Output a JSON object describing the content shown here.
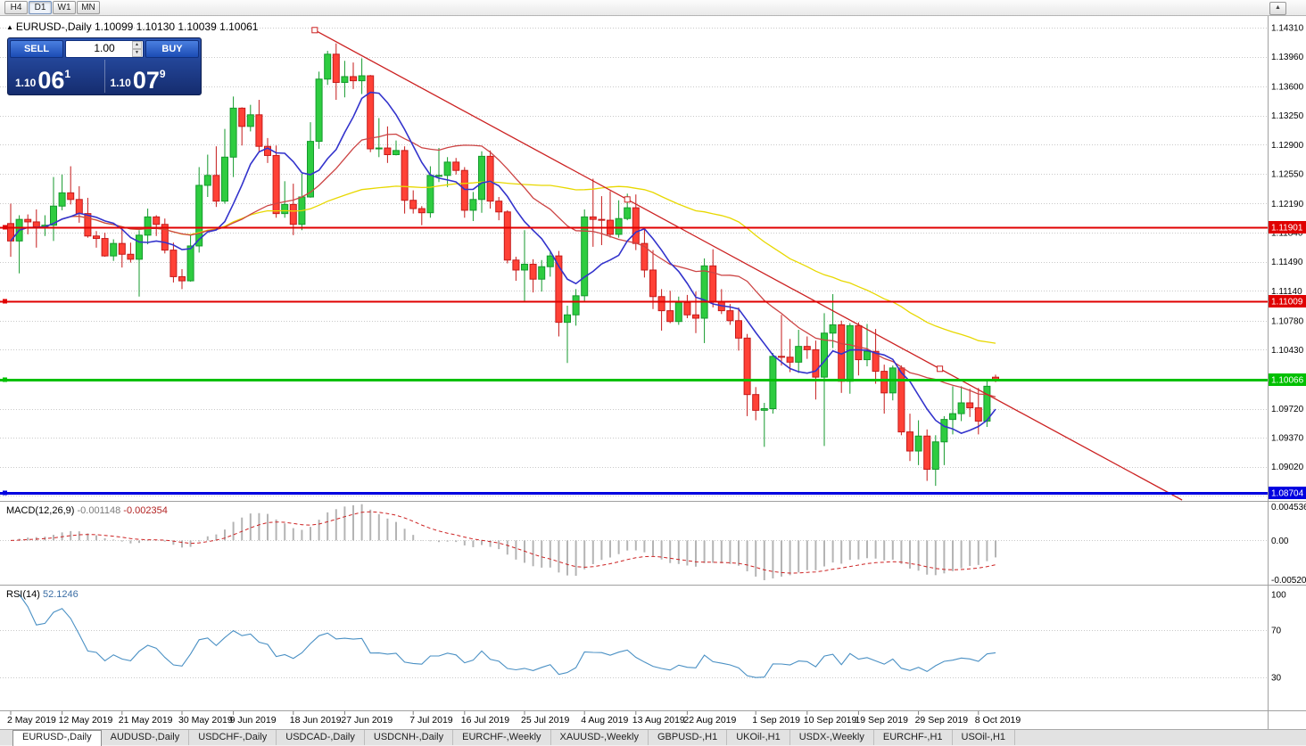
{
  "topbar": {
    "timeframes": [
      "H4",
      "D1",
      "W1",
      "MN"
    ],
    "active_timeframe": "D1"
  },
  "icons": {
    "scroll_up": "▲",
    "title_marker": "▲",
    "spin_up": "▲",
    "spin_down": "▼"
  },
  "chart": {
    "title": "EURUSD-,Daily",
    "ohlc": "1.10099 1.10130 1.10039 1.10061"
  },
  "trade_panel": {
    "sell_label": "SELL",
    "buy_label": "BUY",
    "volume": "1.00",
    "sell_price": {
      "base": "1.10",
      "big": "06",
      "sup": "1"
    },
    "buy_price": {
      "base": "1.10",
      "big": "07",
      "sup": "9"
    }
  },
  "indicators": {
    "macd": {
      "name": "MACD(12,26,9)",
      "value1": "-0.001148",
      "value2": "-0.002354",
      "axis": {
        "top": "0.004536",
        "zero": "0.00",
        "bottom": "-0.005205"
      },
      "params": {
        "fast": 12,
        "slow": 26,
        "signal": 9
      }
    },
    "rsi": {
      "name": "RSI(14)",
      "value": "52.1246",
      "axis": [
        "100",
        "70",
        "30"
      ],
      "params": {
        "period": 14,
        "levels": [
          70,
          30
        ]
      }
    }
  },
  "tabs": [
    {
      "label": "EURUSD-,Daily",
      "active": true
    },
    {
      "label": "AUDUSD-,Daily",
      "active": false
    },
    {
      "label": "USDCHF-,Daily",
      "active": false
    },
    {
      "label": "USDCAD-,Daily",
      "active": false
    },
    {
      "label": "USDCNH-,Daily",
      "active": false
    },
    {
      "label": "EURCHF-,Weekly",
      "active": false
    },
    {
      "label": "XAUUSD-,Weekly",
      "active": false
    },
    {
      "label": "GBPUSD-,H1",
      "active": false
    },
    {
      "label": "UKOil-,H1",
      "active": false
    },
    {
      "label": "USDX-,Weekly",
      "active": false
    },
    {
      "label": "EURCHF-,H1",
      "active": false
    },
    {
      "label": "USOil-,H1",
      "active": false
    }
  ],
  "colors": {
    "candle_up": "#2ecc40",
    "candle_up_border": "#149a2c",
    "candle_down": "#ff4136",
    "candle_down_border": "#c51a1a",
    "grid": "#c9c9c9",
    "macd_histogram": "#b4b4b4",
    "macd_signal": "#cc2222",
    "rsi_line": "#4a90c4",
    "background": "#ffffff",
    "axis_text": "#000000"
  },
  "chart_data": {
    "type": "candlestick",
    "symbol": "EURUSD-",
    "timeframe": "Daily",
    "current_ohlc": {
      "open": 1.10099,
      "high": 1.1013,
      "low": 1.10039,
      "close": 1.10061
    },
    "price_axis_labels": [
      "1.14310",
      "1.13960",
      "1.13600",
      "1.13250",
      "1.12900",
      "1.12550",
      "1.12190",
      "1.11840",
      "1.11490",
      "1.11140",
      "1.10780",
      "1.10430",
      "1.10080",
      "1.09720",
      "1.09370",
      "1.09020",
      "1.08670"
    ],
    "date_labels": [
      {
        "label": "2 May 2019",
        "index": 0
      },
      {
        "label": "12 May 2019",
        "index": 6
      },
      {
        "label": "21 May 2019",
        "index": 13
      },
      {
        "label": "30 May 2019",
        "index": 20
      },
      {
        "label": "9 Jun 2019",
        "index": 26
      },
      {
        "label": "18 Jun 2019",
        "index": 33
      },
      {
        "label": "27 Jun 2019",
        "index": 39
      },
      {
        "label": "7 Jul 2019",
        "index": 47
      },
      {
        "label": "16 Jul 2019",
        "index": 53
      },
      {
        "label": "25 Jul 2019",
        "index": 60
      },
      {
        "label": "4 Aug 2019",
        "index": 67
      },
      {
        "label": "13 Aug 2019",
        "index": 73
      },
      {
        "label": "22 Aug 2019",
        "index": 79
      },
      {
        "label": "1 Sep 2019",
        "index": 87
      },
      {
        "label": "10 Sep 2019",
        "index": 93
      },
      {
        "label": "19 Sep 2019",
        "index": 99
      },
      {
        "label": "29 Sep 2019",
        "index": 106
      },
      {
        "label": "8 Oct 2019",
        "index": 113
      }
    ],
    "horizontal_levels": [
      {
        "label": "1.11901",
        "price": 1.11901,
        "color": "#e00000",
        "width": 2
      },
      {
        "label": "1.11009",
        "price": 1.11009,
        "color": "#e00000",
        "width": 2
      },
      {
        "label": "1.10066",
        "price": 1.10066,
        "color": "#00c000",
        "width": 3
      },
      {
        "label": "1.08704",
        "price": 1.08704,
        "color": "#0000e0",
        "width": 3
      }
    ],
    "trendline": {
      "color": "#cc2222",
      "anchors": [
        {
          "index": 35.5,
          "price": 1.1428
        },
        {
          "index": 72,
          "price": 1.1224
        },
        {
          "index": 108.5,
          "price": 1.102
        }
      ]
    },
    "moving_averages": [
      {
        "period": 50,
        "color": "#e8d800",
        "width": 1.3,
        "name": "slow"
      },
      {
        "period": 20,
        "color": "#cc4444",
        "width": 1.3,
        "name": "medium"
      },
      {
        "period": 8,
        "color": "#3333cc",
        "width": 1.6,
        "name": "fast"
      }
    ],
    "candles": [
      [
        1.1195,
        1.1219,
        1.1155,
        1.1174
      ],
      [
        1.1174,
        1.1205,
        1.1135,
        1.12
      ],
      [
        1.12,
        1.1206,
        1.1182,
        1.1197
      ],
      [
        1.1197,
        1.1212,
        1.1166,
        1.1191
      ],
      [
        1.1191,
        1.1205,
        1.118,
        1.1193
      ],
      [
        1.1193,
        1.1251,
        1.1174,
        1.1216
      ],
      [
        1.1216,
        1.1254,
        1.1211,
        1.1232
      ],
      [
        1.1232,
        1.1264,
        1.1218,
        1.1224
      ],
      [
        1.1224,
        1.124,
        1.1196,
        1.1207
      ],
      [
        1.1207,
        1.1226,
        1.1178,
        1.118
      ],
      [
        1.118,
        1.1186,
        1.1166,
        1.1177
      ],
      [
        1.1177,
        1.1184,
        1.1155,
        1.1156
      ],
      [
        1.1156,
        1.1176,
        1.115,
        1.1171
      ],
      [
        1.1171,
        1.1188,
        1.1142,
        1.1158
      ],
      [
        1.1158,
        1.1172,
        1.1148,
        1.1152
      ],
      [
        1.1152,
        1.1187,
        1.1107,
        1.1181
      ],
      [
        1.1181,
        1.1213,
        1.117,
        1.1203
      ],
      [
        1.1203,
        1.1205,
        1.118,
        1.1194
      ],
      [
        1.1194,
        1.1201,
        1.1159,
        1.1163
      ],
      [
        1.1163,
        1.1172,
        1.1124,
        1.1131
      ],
      [
        1.1131,
        1.114,
        1.1116,
        1.1126
      ],
      [
        1.1126,
        1.1182,
        1.1125,
        1.1168
      ],
      [
        1.1168,
        1.1263,
        1.116,
        1.1241
      ],
      [
        1.1241,
        1.1278,
        1.1227,
        1.1253
      ],
      [
        1.1253,
        1.1288,
        1.1215,
        1.1222
      ],
      [
        1.1222,
        1.1309,
        1.1219,
        1.1275
      ],
      [
        1.1275,
        1.1348,
        1.1251,
        1.1334
      ],
      [
        1.1334,
        1.1335,
        1.1289,
        1.1312
      ],
      [
        1.1312,
        1.1338,
        1.1306,
        1.1326
      ],
      [
        1.1326,
        1.1344,
        1.1282,
        1.1288
      ],
      [
        1.1288,
        1.1298,
        1.1268,
        1.1277
      ],
      [
        1.1277,
        1.1289,
        1.1202,
        1.1207
      ],
      [
        1.1207,
        1.1246,
        1.1202,
        1.1218
      ],
      [
        1.1218,
        1.1243,
        1.1181,
        1.1194
      ],
      [
        1.1194,
        1.1255,
        1.1187,
        1.1227
      ],
      [
        1.1227,
        1.1317,
        1.1226,
        1.1294
      ],
      [
        1.1294,
        1.1378,
        1.1285,
        1.1369
      ],
      [
        1.1369,
        1.1403,
        1.1362,
        1.1399
      ],
      [
        1.1399,
        1.1412,
        1.1344,
        1.1365
      ],
      [
        1.1365,
        1.1391,
        1.1347,
        1.1372
      ],
      [
        1.1372,
        1.1389,
        1.1357,
        1.1367
      ],
      [
        1.1367,
        1.1394,
        1.1351,
        1.1373
      ],
      [
        1.1373,
        1.1374,
        1.1281,
        1.1285
      ],
      [
        1.1285,
        1.1322,
        1.1275,
        1.1286
      ],
      [
        1.1286,
        1.1312,
        1.1268,
        1.1278
      ],
      [
        1.1278,
        1.1295,
        1.1277,
        1.1283
      ],
      [
        1.1283,
        1.1288,
        1.1207,
        1.1223
      ],
      [
        1.1223,
        1.1235,
        1.1207,
        1.1213
      ],
      [
        1.1213,
        1.1216,
        1.1193,
        1.1208
      ],
      [
        1.1208,
        1.1264,
        1.1202,
        1.1253
      ],
      [
        1.1253,
        1.1286,
        1.1245,
        1.1253
      ],
      [
        1.1253,
        1.1275,
        1.1239,
        1.1269
      ],
      [
        1.1269,
        1.1274,
        1.1254,
        1.1259
      ],
      [
        1.1259,
        1.1263,
        1.1202,
        1.1211
      ],
      [
        1.1211,
        1.1233,
        1.1198,
        1.1224
      ],
      [
        1.1224,
        1.1282,
        1.1208,
        1.1276
      ],
      [
        1.1276,
        1.1283,
        1.1213,
        1.1222
      ],
      [
        1.1222,
        1.1227,
        1.1199,
        1.1209
      ],
      [
        1.1209,
        1.1211,
        1.1147,
        1.1151
      ],
      [
        1.1151,
        1.1155,
        1.1126,
        1.1139
      ],
      [
        1.1139,
        1.1187,
        1.1101,
        1.1146
      ],
      [
        1.1146,
        1.1152,
        1.1112,
        1.1128
      ],
      [
        1.1128,
        1.1151,
        1.1113,
        1.1143
      ],
      [
        1.1143,
        1.1162,
        1.1131,
        1.1156
      ],
      [
        1.1156,
        1.1162,
        1.1059,
        1.1076
      ],
      [
        1.1076,
        1.1096,
        1.1027,
        1.1085
      ],
      [
        1.1085,
        1.1116,
        1.1072,
        1.1108
      ],
      [
        1.1108,
        1.1212,
        1.1101,
        1.1203
      ],
      [
        1.1203,
        1.1249,
        1.1167,
        1.12
      ],
      [
        1.12,
        1.1228,
        1.1169,
        1.1199
      ],
      [
        1.1199,
        1.1234,
        1.1178,
        1.1182
      ],
      [
        1.1182,
        1.1223,
        1.1178,
        1.1201
      ],
      [
        1.1201,
        1.1231,
        1.1199,
        1.1214
      ],
      [
        1.1214,
        1.123,
        1.1163,
        1.1171
      ],
      [
        1.1171,
        1.1191,
        1.113,
        1.1139
      ],
      [
        1.1139,
        1.1163,
        1.1092,
        1.1107
      ],
      [
        1.1107,
        1.1116,
        1.1066,
        1.109
      ],
      [
        1.109,
        1.1114,
        1.1075,
        1.1077
      ],
      [
        1.1077,
        1.1107,
        1.1073,
        1.11
      ],
      [
        1.11,
        1.1109,
        1.1081,
        1.1085
      ],
      [
        1.1085,
        1.1113,
        1.1063,
        1.1081
      ],
      [
        1.1081,
        1.1153,
        1.1051,
        1.1144
      ],
      [
        1.1144,
        1.1164,
        1.1094,
        1.1101
      ],
      [
        1.1101,
        1.1116,
        1.1086,
        1.109
      ],
      [
        1.109,
        1.1098,
        1.1073,
        1.1078
      ],
      [
        1.1078,
        1.1094,
        1.1042,
        1.1057
      ],
      [
        1.1057,
        1.1062,
        1.0963,
        1.0989
      ],
      [
        1.0989,
        1.0998,
        1.0958,
        1.097
      ],
      [
        1.097,
        1.0979,
        1.0926,
        1.0972
      ],
      [
        1.0972,
        1.1039,
        1.0966,
        1.1035
      ],
      [
        1.1035,
        1.1085,
        1.1024,
        1.1034
      ],
      [
        1.1034,
        1.1056,
        1.1016,
        1.1028
      ],
      [
        1.1028,
        1.1067,
        1.1015,
        1.1047
      ],
      [
        1.1047,
        1.1059,
        1.1032,
        1.1043
      ],
      [
        1.1043,
        1.1054,
        1.0983,
        1.101
      ],
      [
        1.101,
        1.1087,
        1.0927,
        1.1063
      ],
      [
        1.1063,
        1.111,
        1.1045,
        1.1073
      ],
      [
        1.1073,
        1.1078,
        1.0991,
        1.1005
      ],
      [
        1.1005,
        1.1075,
        1.099,
        1.1072
      ],
      [
        1.1072,
        1.1076,
        1.1012,
        1.1031
      ],
      [
        1.1031,
        1.1074,
        1.1023,
        1.1041
      ],
      [
        1.1041,
        1.1068,
        1.1002,
        1.1017
      ],
      [
        1.1017,
        1.1025,
        1.0966,
        1.0991
      ],
      [
        1.0991,
        1.1024,
        1.0982,
        1.1021
      ],
      [
        1.1021,
        1.1024,
        1.094,
        1.0944
      ],
      [
        1.0944,
        1.0966,
        1.0909,
        1.0921
      ],
      [
        1.0921,
        1.0958,
        1.0904,
        1.0939
      ],
      [
        1.0939,
        1.0947,
        1.0885,
        1.0899
      ],
      [
        1.0899,
        1.094,
        1.0879,
        1.0932
      ],
      [
        1.0932,
        1.0963,
        1.0904,
        1.0959
      ],
      [
        1.0959,
        1.0999,
        1.0941,
        1.0966
      ],
      [
        1.0966,
        1.0999,
        1.0957,
        1.0979
      ],
      [
        1.0979,
        1.0996,
        1.0962,
        1.0973
      ],
      [
        1.0973,
        1.0997,
        1.0941,
        1.0957
      ],
      [
        1.0957,
        1.1005,
        1.095,
        1.0999
      ],
      [
        1.10099,
        1.1013,
        1.10039,
        1.10061
      ]
    ]
  }
}
